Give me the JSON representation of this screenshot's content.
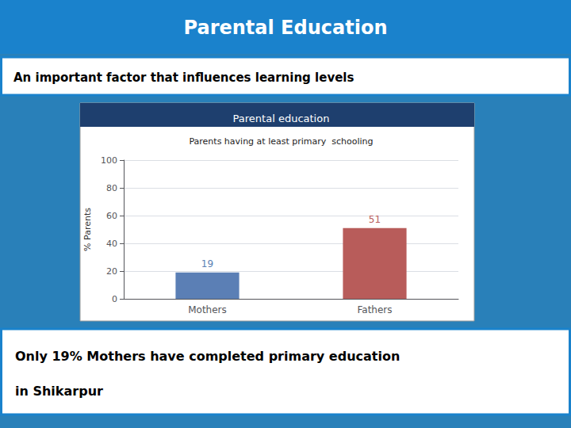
{
  "title": "Parental Education",
  "subtitle": "An important factor that influences learning levels",
  "chart_data": {
    "type": "bar",
    "title": "Parental education",
    "subtitle": "Parents having at least primary  schooling",
    "categories": [
      "Mothers",
      "Fathers"
    ],
    "values": [
      19,
      51
    ],
    "colors": [
      "#5b7fb5",
      "#b85c5a"
    ],
    "ylabel": "% Parents",
    "ylim": [
      0,
      100
    ],
    "yticks": [
      0,
      20,
      40,
      60,
      80,
      100
    ],
    "grid": true,
    "data_labels": true
  },
  "annotations": [
    "Only 19% Mothers have completed primary education",
    "in Shikarpur"
  ]
}
